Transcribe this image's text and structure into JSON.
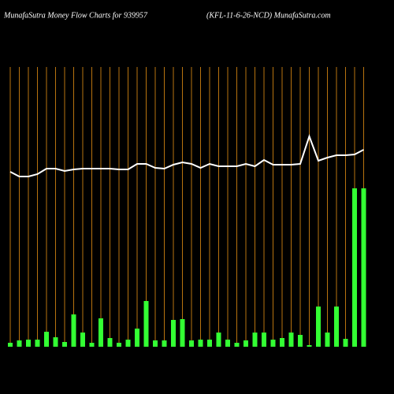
{
  "chart_data": {
    "type": "bar",
    "title": "MunafaSutra  Money Flow  Charts for 939957",
    "subtitle": "(KFL-11-6-26-NCD) MunafaSutra.com",
    "ylim": [
      0,
      300
    ],
    "series": [
      {
        "type": "bar",
        "color": "#33ff33",
        "values": [
          5,
          8,
          9,
          9,
          19,
          12,
          6,
          41,
          18,
          5,
          36,
          11,
          5,
          9,
          23,
          58,
          8,
          8,
          34,
          35,
          8,
          9,
          9,
          18,
          9,
          5,
          8,
          18,
          18,
          9,
          11,
          18,
          15,
          2,
          51,
          18,
          51,
          10,
          201,
          201
        ]
      },
      {
        "type": "line",
        "color": "#ffffff",
        "values": [
          222,
          216,
          216,
          219,
          226,
          226,
          223,
          225,
          226,
          226,
          226,
          226,
          225,
          225,
          232,
          232,
          227,
          226,
          231,
          234,
          232,
          227,
          232,
          229,
          229,
          229,
          232,
          229,
          237,
          231,
          231,
          231,
          232,
          267,
          236,
          240,
          243,
          243,
          244,
          250
        ]
      }
    ],
    "grid_color": "#b8730f"
  }
}
